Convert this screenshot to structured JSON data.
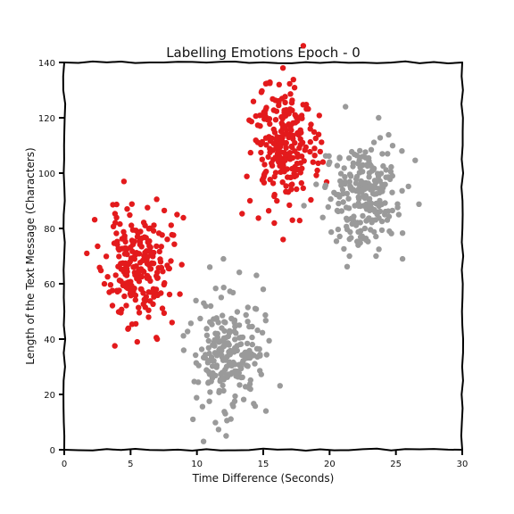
{
  "chart_data": {
    "type": "scatter",
    "title": "Labelling Emotions Epoch - 0",
    "xlabel": "Time Difference (Seconds)",
    "ylabel": "Length of the Text Message (Characters)",
    "xlim": [
      0,
      30
    ],
    "ylim": [
      0,
      140
    ],
    "xticks": [
      0,
      5,
      10,
      15,
      20,
      25,
      30
    ],
    "yticks": [
      0,
      20,
      40,
      60,
      80,
      100,
      120,
      140
    ],
    "grid": false,
    "style": "xkcd hand-drawn",
    "colors": {
      "red": "#e31a1c",
      "gray": "#9a9a9a"
    },
    "series": [
      {
        "color": "red",
        "clusters": [
          {
            "center": [
              5.5,
              66
            ],
            "spread": [
              1.2,
              10
            ],
            "count": 220,
            "seed": 11,
            "points": [
              [
                1.7,
                71
              ],
              [
                4.5,
                97
              ],
              [
                8.5,
                85
              ],
              [
                7,
                40
              ],
              [
                5.5,
                39
              ]
            ]
          },
          {
            "center": [
              16.5,
              110
            ],
            "spread": [
              1.2,
              11
            ],
            "count": 230,
            "seed": 23,
            "points": [
              [
                16.5,
                76
              ],
              [
                17.2,
                83
              ],
              [
                14,
                90
              ],
              [
                19.5,
                104
              ],
              [
                16.2,
                132
              ]
            ]
          }
        ]
      },
      {
        "color": "gray",
        "clusters": [
          {
            "center": [
              12.5,
              35
            ],
            "spread": [
              1.3,
              10
            ],
            "count": 220,
            "seed": 37,
            "points": [
              [
                10.5,
                3
              ],
              [
                9.7,
                11
              ],
              [
                12.2,
                5
              ],
              [
                15.2,
                14
              ],
              [
                12,
                69
              ],
              [
                15,
                58
              ]
            ]
          },
          {
            "center": [
              22.5,
              92
            ],
            "spread": [
              1.3,
              9
            ],
            "count": 230,
            "seed": 53,
            "points": [
              [
                25.5,
                69
              ],
              [
                23.5,
                70
              ],
              [
                21.5,
                70
              ],
              [
                23.7,
                120
              ],
              [
                21.2,
                124
              ],
              [
                20,
                104
              ]
            ]
          }
        ]
      }
    ]
  }
}
